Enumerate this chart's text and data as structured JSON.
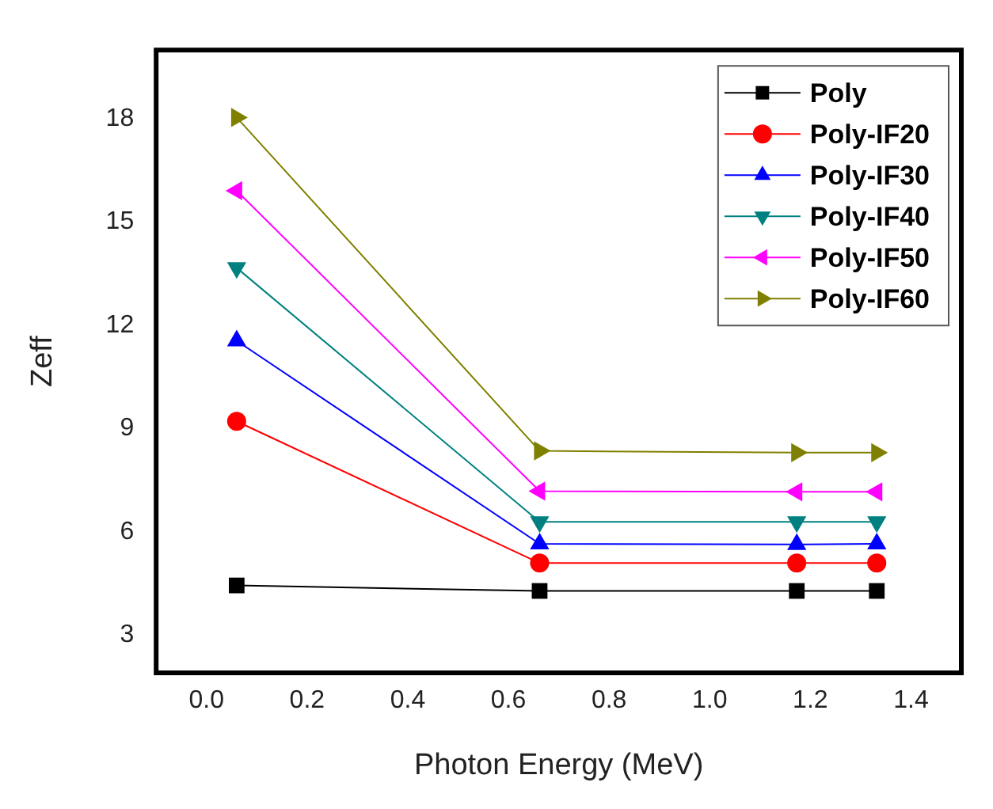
{
  "chart_data": {
    "type": "line",
    "xlabel": "Photon Energy (MeV)",
    "ylabel": "Zeff",
    "xlim": [
      -0.1,
      1.5
    ],
    "xticks": [
      {
        "value": 0,
        "label": "0.0"
      },
      0.2,
      0.4,
      0.6,
      0.8,
      {
        "value": 1,
        "label": "1.0"
      },
      1.2,
      1.4
    ],
    "ylim": [
      1.9,
      20
    ],
    "yticks": [
      3,
      6,
      9,
      12,
      15,
      18
    ],
    "x": [
      0.06,
      0.662,
      1.173,
      1.332
    ],
    "grid": false,
    "legend": "top right",
    "line_style": "solid",
    "series": [
      {
        "name": "Poly",
        "color": "#000000",
        "marker": "square",
        "values": [
          4.44,
          4.28,
          4.28,
          4.28
        ]
      },
      {
        "name": "Poly-IF20",
        "color": "#ff0000",
        "marker": "circle",
        "values": [
          9.21,
          5.09,
          5.09,
          5.09
        ]
      },
      {
        "name": "Poly-IF30",
        "color": "#0000ff",
        "marker": "triangle",
        "values": [
          11.55,
          5.65,
          5.63,
          5.65
        ]
      },
      {
        "name": "Poly-IF40",
        "color": "#008080",
        "marker": "triangle-down",
        "values": [
          13.67,
          6.29,
          6.29,
          6.29
        ]
      },
      {
        "name": "Poly-IF50",
        "color": "#ff00ff",
        "marker": "triangle-left",
        "values": [
          15.91,
          7.18,
          7.16,
          7.16
        ]
      },
      {
        "name": "Poly-IF60",
        "color": "#808000",
        "marker": "triangle-right",
        "values": [
          18.04,
          8.35,
          8.3,
          8.3
        ]
      }
    ]
  }
}
